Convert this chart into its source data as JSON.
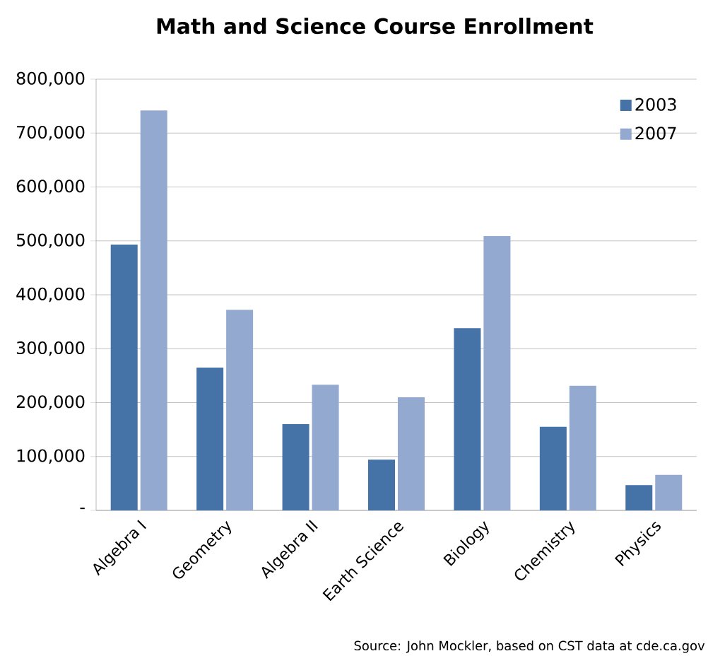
{
  "chart_data": {
    "type": "bar",
    "title": "Math and Science Course Enrollment",
    "categories": [
      "Algebra I",
      "Geometry",
      "Algebra II",
      "Earth Science",
      "Biology",
      "Chemistry",
      "Physics"
    ],
    "series": [
      {
        "name": "2003",
        "color": "#4572a7",
        "values": [
          493000,
          265000,
          160000,
          94000,
          338000,
          155000,
          47000
        ]
      },
      {
        "name": "2007",
        "color": "#93a9cf",
        "values": [
          742000,
          372000,
          233000,
          210000,
          509000,
          231000,
          66000
        ]
      }
    ],
    "ylim": [
      0,
      800000
    ],
    "yticks": [
      {
        "value": 0,
        "label": "-"
      },
      {
        "value": 100000,
        "label": "100,000"
      },
      {
        "value": 200000,
        "label": "200,000"
      },
      {
        "value": 300000,
        "label": "300,000"
      },
      {
        "value": 400000,
        "label": "400,000"
      },
      {
        "value": 500000,
        "label": "500,000"
      },
      {
        "value": 600000,
        "label": "600,000"
      },
      {
        "value": 700000,
        "label": "700,000"
      },
      {
        "value": 800000,
        "label": "800,000"
      }
    ],
    "grid": "y",
    "legend": "top right",
    "annotations": [
      "Source:  John Mockler, based on CST data at cde.ca.gov"
    ]
  }
}
